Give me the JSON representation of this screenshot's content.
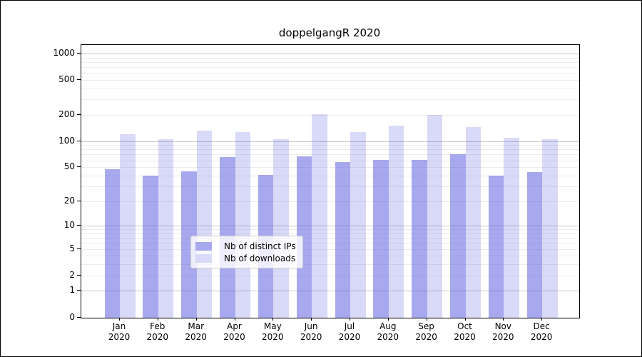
{
  "chart_data": {
    "type": "bar",
    "title": "doppelgangR 2020",
    "categories": [
      "Jan",
      "Feb",
      "Mar",
      "Apr",
      "May",
      "Jun",
      "Jul",
      "Aug",
      "Sep",
      "Oct",
      "Nov",
      "Dec"
    ],
    "x_tick_year_line": "2020",
    "series": [
      {
        "name": "Nb of distinct IPs",
        "color": "#a8a8ef",
        "rgba": "rgba(82,82,222,0.5)",
        "values": [
          47,
          40,
          45,
          65,
          41,
          67,
          57,
          61,
          61,
          70,
          40,
          44
        ]
      },
      {
        "name": "Nb of downloads",
        "color": "#d9d9f8",
        "rgba": "rgba(82,82,222,0.22)",
        "values": [
          120,
          105,
          131,
          127,
          105,
          204,
          127,
          150,
          198,
          145,
          110,
          106
        ]
      }
    ],
    "yscale": "log-like (log10(value+1))",
    "ylim": [
      0,
      1250
    ],
    "y_ticks": [
      0,
      1,
      2,
      5,
      10,
      20,
      50,
      100,
      200,
      500,
      1000
    ],
    "y_major_gridlines": [
      1,
      10,
      100,
      1000
    ],
    "y_minor_gridlines": [
      2,
      3,
      4,
      5,
      6,
      7,
      8,
      9,
      20,
      30,
      40,
      50,
      60,
      70,
      80,
      90,
      200,
      300,
      400,
      500,
      600,
      700,
      800,
      900
    ],
    "grid": "on",
    "legend_position": "lower center (inside plot)"
  },
  "legend": {
    "items": [
      {
        "label": "Nb of distinct IPs",
        "color": "#a8a8ef"
      },
      {
        "label": "Nb of downloads",
        "color": "#d9d9f8"
      }
    ]
  },
  "colors": {
    "bar_distinct_ips": "#a8a8ef",
    "bar_downloads": "#d9d9f8",
    "grid_major": "#c6c6c6",
    "grid_minor": "#ececec",
    "spine": "#000000",
    "text": "#000000",
    "legend_border": "#cccccc",
    "legend_bg": "rgba(255,255,255,0.8)"
  }
}
